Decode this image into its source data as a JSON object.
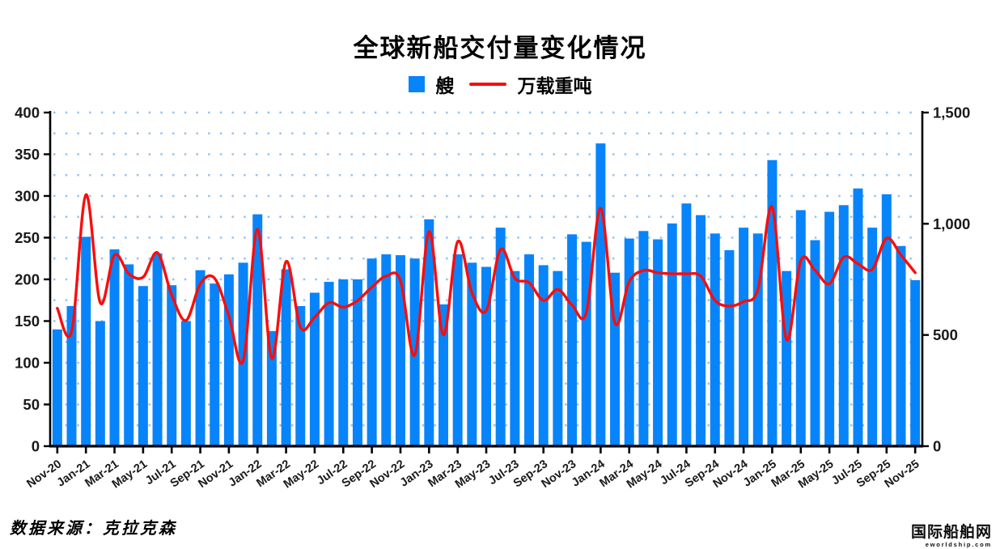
{
  "title": "全球新船交付量变化情况",
  "source_note": "数据来源：克拉克森",
  "watermark": {
    "line1": "国际船舶网",
    "line2": "eworldship.com"
  },
  "colors": {
    "bar": "#0884fa",
    "line": "#fb0c0c",
    "grid": "#92c3f5",
    "axis": "#000000",
    "tick_text": "#1a1a1a"
  },
  "chart_data": {
    "type": "bar",
    "title": "全球新船交付量变化情况",
    "legend_position": "top",
    "grid": "dotted-horizontal",
    "categories": [
      "Nov-20",
      "Dec-20",
      "Jan-21",
      "Feb-21",
      "Mar-21",
      "Apr-21",
      "May-21",
      "Jun-21",
      "Jul-21",
      "Aug-21",
      "Sep-21",
      "Oct-21",
      "Nov-21",
      "Dec-21",
      "Jan-22",
      "Feb-22",
      "Mar-22",
      "Apr-22",
      "May-22",
      "Jun-22",
      "Jul-22",
      "Aug-22",
      "Sep-22",
      "Oct-22",
      "Nov-22",
      "Dec-22",
      "Jan-23",
      "Feb-23",
      "Mar-23",
      "Apr-23",
      "May-23",
      "Jun-23",
      "Jul-23",
      "Aug-23",
      "Sep-23",
      "Oct-23",
      "Nov-23",
      "Dec-23",
      "Jan-24",
      "Feb-24",
      "Mar-24",
      "Apr-24",
      "May-24",
      "Jun-24",
      "Jul-24",
      "Aug-24",
      "Sep-24",
      "Oct-24",
      "Nov-24",
      "Dec-24",
      "Jan-25",
      "Feb-25",
      "Mar-25",
      "Apr-25",
      "May-25",
      "Jun-25",
      "Jul-25",
      "Aug-25",
      "Sep-25",
      "Oct-25",
      "Nov-25"
    ],
    "x_tick_every": 2,
    "series": [
      {
        "name": "艘",
        "type": "bar",
        "axis": "left",
        "color": "#0884fa",
        "values": [
          140,
          168,
          251,
          150,
          236,
          218,
          192,
          231,
          193,
          150,
          211,
          195,
          206,
          220,
          278,
          138,
          212,
          168,
          184,
          197,
          200,
          200,
          225,
          230,
          229,
          225,
          272,
          170,
          230,
          220,
          215,
          262,
          210,
          230,
          217,
          210,
          254,
          245,
          363,
          208,
          249,
          258,
          248,
          267,
          291,
          277,
          255,
          235,
          262,
          255,
          343,
          210,
          283,
          247,
          281,
          289,
          309,
          262,
          302,
          240,
          199
        ]
      },
      {
        "name": "万载重吨",
        "type": "line",
        "axis": "right",
        "color": "#fb0c0c",
        "values": [
          620,
          515,
          1130,
          645,
          860,
          775,
          760,
          870,
          680,
          565,
          730,
          755,
          585,
          385,
          975,
          395,
          830,
          535,
          580,
          645,
          625,
          655,
          715,
          765,
          745,
          410,
          965,
          500,
          920,
          690,
          610,
          885,
          755,
          735,
          655,
          705,
          635,
          600,
          1070,
          555,
          740,
          790,
          780,
          775,
          775,
          765,
          655,
          630,
          650,
          705,
          1075,
          480,
          835,
          790,
          730,
          850,
          820,
          795,
          935,
          860,
          780
        ]
      }
    ],
    "left_axis": {
      "min": 0,
      "max": 400,
      "tick_values": [
        0,
        50,
        100,
        150,
        200,
        250,
        300,
        350,
        400
      ],
      "tick_labels": [
        "0",
        "50",
        "100",
        "150",
        "200",
        "250",
        "300",
        "350",
        "400"
      ]
    },
    "right_axis": {
      "min": 0,
      "max": 1500,
      "tick_values": [
        0,
        500,
        1000,
        1500
      ],
      "tick_labels": [
        "0",
        "500",
        "1,000",
        "1,500"
      ]
    },
    "gridline_step_left_units": 25
  }
}
